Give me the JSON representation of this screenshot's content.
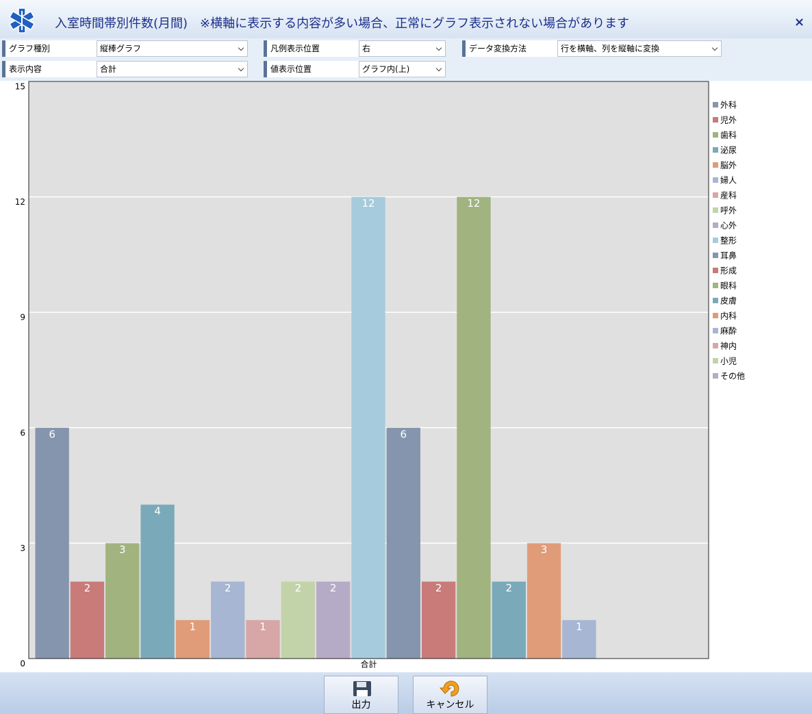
{
  "window": {
    "title": "入室時間帯別件数(月間)　※横軸に表示する内容が多い場合、正常にグラフ表示されない場合があります",
    "close": "×"
  },
  "controls": [
    {
      "label": "グラフ種別",
      "value": "縦棒グラフ"
    },
    {
      "label": "凡例表示位置",
      "value": "右"
    },
    {
      "label": "データ変換方法",
      "value": "行を横軸、列を縦軸に変換"
    },
    {
      "label": "表示内容",
      "value": "合計"
    },
    {
      "label": "値表示位置",
      "value": "グラフ内(上)"
    }
  ],
  "chart_data": {
    "type": "bar",
    "categories": [
      "合計"
    ],
    "ylim": [
      0,
      15
    ],
    "yticks": [
      0,
      3,
      6,
      9,
      12,
      15
    ],
    "grid": true,
    "legend": "right",
    "series": [
      {
        "name": "外科",
        "color": "#8595ae",
        "values": [
          6
        ]
      },
      {
        "name": "児外",
        "color": "#c97b7a",
        "values": [
          2
        ]
      },
      {
        "name": "歯科",
        "color": "#a1b37f",
        "values": [
          3
        ]
      },
      {
        "name": "泌尿",
        "color": "#7aaaba",
        "values": [
          4
        ]
      },
      {
        "name": "脳外",
        "color": "#e09c78",
        "values": [
          1
        ]
      },
      {
        "name": "婦人",
        "color": "#a6b6d3",
        "values": [
          2
        ]
      },
      {
        "name": "産科",
        "color": "#d6a7a6",
        "values": [
          1
        ]
      },
      {
        "name": "呼外",
        "color": "#c3d3a9",
        "values": [
          2
        ]
      },
      {
        "name": "心外",
        "color": "#b6abc6",
        "values": [
          2
        ]
      },
      {
        "name": "整形",
        "color": "#a6cbdc",
        "values": [
          12
        ]
      },
      {
        "name": "耳鼻",
        "color": "#8595ae",
        "values": [
          6
        ]
      },
      {
        "name": "形成",
        "color": "#c97b7a",
        "values": [
          2
        ]
      },
      {
        "name": "眼科",
        "color": "#a1b37f",
        "values": [
          12
        ]
      },
      {
        "name": "皮膚",
        "color": "#7aaaba",
        "values": [
          2
        ]
      },
      {
        "name": "内科",
        "color": "#e09c78",
        "values": [
          3
        ]
      },
      {
        "name": "麻酔",
        "color": "#a6b6d3",
        "values": [
          1
        ]
      },
      {
        "name": "神内",
        "color": "#d6a7a6",
        "values": [
          0
        ]
      },
      {
        "name": "小児",
        "color": "#c3d3a9",
        "values": [
          0
        ]
      },
      {
        "name": "その他",
        "color": "#b6abc6",
        "values": [
          0
        ]
      }
    ]
  },
  "buttons": [
    "出力",
    "キャンセル"
  ]
}
